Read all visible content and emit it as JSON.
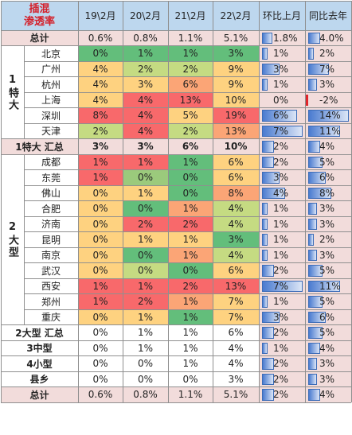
{
  "header": {
    "title_line1": "插混",
    "title_line2": "渗透率",
    "columns": [
      "19\\2月",
      "20\\2月",
      "21\\2月",
      "22\\2月",
      "环比上月",
      "同比去年"
    ]
  },
  "groups": {
    "tier1": "1特大",
    "tier2": "2大型"
  },
  "colors": {
    "header_bg": "#bdd7ee",
    "subtotal_bg": "#f2dcdb",
    "pink_bg": "#f2dcdb",
    "red": "#f8696b",
    "orange": "#fba576",
    "yellow": "#fed280",
    "ltgreen": "#c5db82",
    "midgreen": "#9bca7c",
    "green": "#63be7b"
  },
  "rows": [
    {
      "label": "总计",
      "type": "total",
      "values": [
        "0.6%",
        "0.8%",
        "1.1%",
        "5.1%"
      ],
      "mom": "1.8%",
      "mom_val": 1.8,
      "yoy": "4.0%",
      "yoy_val": 4.0
    },
    {
      "label": "北京",
      "type": "city",
      "group": "tier1",
      "values": [
        "0%",
        "1%",
        "1%",
        "3%"
      ],
      "colors": [
        "green",
        "green",
        "green",
        "green"
      ],
      "mom": "1%",
      "mom_val": 1,
      "yoy": "2%",
      "yoy_val": 2
    },
    {
      "label": "广州",
      "type": "city",
      "group": "tier1",
      "values": [
        "4%",
        "2%",
        "2%",
        "9%"
      ],
      "colors": [
        "yellow",
        "ltgreen",
        "ltgreen",
        "yellow"
      ],
      "mom": "3%",
      "mom_val": 3,
      "yoy": "7%",
      "yoy_val": 7
    },
    {
      "label": "杭州",
      "type": "city",
      "group": "tier1",
      "values": [
        "4%",
        "3%",
        "6%",
        "9%"
      ],
      "colors": [
        "yellow",
        "yellow",
        "orange",
        "yellow"
      ],
      "mom": "1%",
      "mom_val": 1,
      "yoy": "3%",
      "yoy_val": 3
    },
    {
      "label": "上海",
      "type": "city",
      "group": "tier1",
      "values": [
        "4%",
        "4%",
        "13%",
        "10%"
      ],
      "colors": [
        "yellow",
        "red",
        "red",
        "yellow"
      ],
      "mom": "0%",
      "mom_val": 0,
      "yoy": "-2%",
      "yoy_val": -2
    },
    {
      "label": "深圳",
      "type": "city",
      "group": "tier1",
      "values": [
        "8%",
        "4%",
        "5%",
        "19%"
      ],
      "colors": [
        "red",
        "red",
        "yellow",
        "red"
      ],
      "mom": "6%",
      "mom_val": 6,
      "yoy": "14%",
      "yoy_val": 14
    },
    {
      "label": "天津",
      "type": "city",
      "group": "tier1",
      "values": [
        "2%",
        "4%",
        "2%",
        "13%"
      ],
      "colors": [
        "ltgreen",
        "red",
        "ltgreen",
        "orange"
      ],
      "mom": "7%",
      "mom_val": 7,
      "yoy": "11%",
      "yoy_val": 11
    },
    {
      "label": "1特大 汇总",
      "type": "subtotal",
      "values": [
        "3%",
        "3%",
        "6%",
        "10%"
      ],
      "mom": "2%",
      "mom_val": 2,
      "yoy": "4%",
      "yoy_val": 4
    },
    {
      "label": "成都",
      "type": "city",
      "group": "tier2",
      "values": [
        "1%",
        "1%",
        "1%",
        "6%"
      ],
      "colors": [
        "red",
        "red",
        "green",
        "yellow"
      ],
      "mom": "2%",
      "mom_val": 2,
      "yoy": "5%",
      "yoy_val": 5
    },
    {
      "label": "东莞",
      "type": "city",
      "group": "tier2",
      "values": [
        "1%",
        "0%",
        "0%",
        "6%"
      ],
      "colors": [
        "red",
        "midgreen",
        "green",
        "yellow"
      ],
      "mom": "3%",
      "mom_val": 3,
      "yoy": "6%",
      "yoy_val": 6
    },
    {
      "label": "佛山",
      "type": "city",
      "group": "tier2",
      "values": [
        "0%",
        "1%",
        "0%",
        "8%"
      ],
      "colors": [
        "yellow",
        "yellow",
        "green",
        "orange"
      ],
      "mom": "4%",
      "mom_val": 4,
      "yoy": "8%",
      "yoy_val": 8
    },
    {
      "label": "合肥",
      "type": "city",
      "group": "tier2",
      "values": [
        "0%",
        "0%",
        "1%",
        "4%"
      ],
      "colors": [
        "yellow",
        "green",
        "orange",
        "ltgreen"
      ],
      "mom": "1%",
      "mom_val": 1,
      "yoy": "3%",
      "yoy_val": 3
    },
    {
      "label": "济南",
      "type": "city",
      "group": "tier2",
      "values": [
        "0%",
        "2%",
        "2%",
        "4%"
      ],
      "colors": [
        "yellow",
        "red",
        "red",
        "ltgreen"
      ],
      "mom": "1%",
      "mom_val": 1,
      "yoy": "3%",
      "yoy_val": 3
    },
    {
      "label": "昆明",
      "type": "city",
      "group": "tier2",
      "values": [
        "0%",
        "1%",
        "1%",
        "3%"
      ],
      "colors": [
        "yellow",
        "yellow",
        "yellow",
        "green"
      ],
      "mom": "1%",
      "mom_val": 1,
      "yoy": "2%",
      "yoy_val": 2
    },
    {
      "label": "南京",
      "type": "city",
      "group": "tier2",
      "values": [
        "0%",
        "0%",
        "1%",
        "4%"
      ],
      "colors": [
        "yellow",
        "green",
        "orange",
        "ltgreen"
      ],
      "mom": "1%",
      "mom_val": 1,
      "yoy": "3%",
      "yoy_val": 3
    },
    {
      "label": "武汉",
      "type": "city",
      "group": "tier2",
      "values": [
        "0%",
        "0%",
        "0%",
        "6%"
      ],
      "colors": [
        "yellow",
        "ltgreen",
        "green",
        "yellow"
      ],
      "mom": "2%",
      "mom_val": 2,
      "yoy": "5%",
      "yoy_val": 5
    },
    {
      "label": "西安",
      "type": "city",
      "group": "tier2",
      "values": [
        "1%",
        "1%",
        "2%",
        "13%"
      ],
      "colors": [
        "red",
        "red",
        "red",
        "red"
      ],
      "mom": "7%",
      "mom_val": 7,
      "yoy": "11%",
      "yoy_val": 11
    },
    {
      "label": "郑州",
      "type": "city",
      "group": "tier2",
      "values": [
        "1%",
        "2%",
        "1%",
        "7%"
      ],
      "colors": [
        "red",
        "red",
        "orange",
        "yellow"
      ],
      "mom": "1%",
      "mom_val": 1,
      "yoy": "5%",
      "yoy_val": 5
    },
    {
      "label": "重庆",
      "type": "city",
      "group": "tier2",
      "values": [
        "0%",
        "1%",
        "1%",
        "7%"
      ],
      "colors": [
        "yellow",
        "yellow",
        "green",
        "yellow"
      ],
      "mom": "3%",
      "mom_val": 3,
      "yoy": "6%",
      "yoy_val": 6
    },
    {
      "label": "2大型 汇总",
      "type": "summary",
      "values": [
        "0%",
        "1%",
        "1%",
        "6%"
      ],
      "mom": "2%",
      "mom_val": 2,
      "yoy": "5%",
      "yoy_val": 5
    },
    {
      "label": "3中型",
      "type": "summary",
      "values": [
        "0%",
        "1%",
        "1%",
        "4%"
      ],
      "mom": "1%",
      "mom_val": 1,
      "yoy": "4%",
      "yoy_val": 4
    },
    {
      "label": "4小型",
      "type": "summary",
      "values": [
        "0%",
        "0%",
        "1%",
        "4%"
      ],
      "mom": "2%",
      "mom_val": 2,
      "yoy": "3%",
      "yoy_val": 3
    },
    {
      "label": "县乡",
      "type": "summary",
      "values": [
        "0%",
        "0%",
        "0%",
        "3%"
      ],
      "mom": "2%",
      "mom_val": 2,
      "yoy": "3%",
      "yoy_val": 3
    },
    {
      "label": "总计",
      "type": "total_bottom",
      "values": [
        "0.6%",
        "0.8%",
        "1.1%",
        "5.1%"
      ],
      "mom": "2%",
      "mom_val": 2,
      "yoy": "4%",
      "yoy_val": 4
    }
  ]
}
